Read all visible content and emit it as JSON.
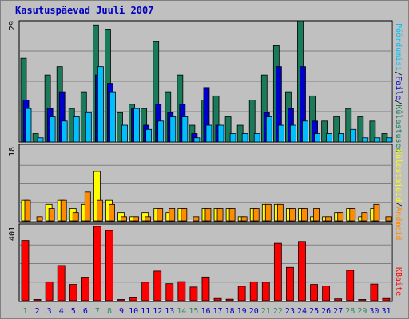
{
  "title": "Kasutuspäevad Juuli 2007",
  "colors": {
    "background": "#c0c0c0",
    "title": "#0000c0",
    "grid": "#808080",
    "weekday_label": "#0000c0",
    "weekend_label": "#2e8b57",
    "visits": "#1a7a5a",
    "pages": "#0000cc",
    "files": "#00bfff",
    "hits": "#ffff00",
    "volume": "#ff8c00",
    "bytes": "#ff0000"
  },
  "chart_data": [
    {
      "type": "bar",
      "name": "top",
      "ymax_label": "29",
      "ylim": [
        0,
        29
      ],
      "legend": [
        "Külastused",
        "Faile",
        "Pöördumisi"
      ],
      "categories": [
        "1",
        "2",
        "3",
        "4",
        "5",
        "6",
        "7",
        "8",
        "9",
        "10",
        "11",
        "12",
        "13",
        "14",
        "15",
        "16",
        "17",
        "18",
        "19",
        "20",
        "21",
        "22",
        "23",
        "24",
        "25",
        "26",
        "27",
        "28",
        "29",
        "30",
        "31"
      ],
      "series": [
        {
          "name": "Külastused",
          "values": [
            20,
            2,
            16,
            18,
            8,
            12,
            28,
            27,
            7,
            9,
            8,
            24,
            12,
            16,
            4,
            10,
            11,
            6,
            4,
            10,
            16,
            23,
            12,
            29,
            11,
            5,
            6,
            8,
            6,
            5,
            2
          ]
        },
        {
          "name": "Faile",
          "values": [
            10,
            0,
            8,
            12,
            0,
            0,
            16,
            14,
            0,
            8,
            4,
            9,
            7,
            9,
            2,
            13,
            4,
            0,
            0,
            0,
            7,
            18,
            8,
            18,
            5,
            0,
            0,
            0,
            0,
            0,
            0
          ]
        },
        {
          "name": "Pöördumisi",
          "values": [
            8,
            1,
            6,
            5,
            6,
            7,
            18,
            12,
            4,
            8,
            3,
            5,
            6,
            6,
            1,
            4,
            4,
            2,
            2,
            2,
            6,
            4,
            4,
            5,
            2,
            2,
            2,
            3,
            1,
            1,
            1
          ]
        }
      ]
    },
    {
      "type": "bar",
      "name": "middle",
      "ymax_label": "18",
      "ylim": [
        0,
        18
      ],
      "legend": [
        "Andmeid",
        "Külastajaid"
      ],
      "series": [
        {
          "name": "Andmeid",
          "values": [
            5,
            0,
            4,
            5,
            3,
            4,
            12,
            5,
            2,
            1,
            2,
            3,
            2,
            3,
            0,
            3,
            3,
            3,
            1,
            3,
            4,
            4,
            3,
            3,
            1,
            1,
            2,
            3,
            1,
            3,
            0
          ]
        },
        {
          "name": "Külastajaid",
          "values": [
            5,
            1,
            3,
            5,
            2,
            7,
            5,
            4,
            1,
            1,
            1,
            3,
            3,
            3,
            1,
            3,
            3,
            3,
            1,
            3,
            4,
            4,
            3,
            3,
            3,
            1,
            2,
            3,
            2,
            4,
            1
          ]
        }
      ]
    },
    {
      "type": "bar",
      "name": "bottom",
      "ymax_label": "401",
      "ylim": [
        0,
        401
      ],
      "legend": [
        "KBaite"
      ],
      "series": [
        {
          "name": "KBaite",
          "values": [
            325,
            6,
            102,
            190,
            88,
            127,
            401,
            379,
            6,
            16,
            100,
            160,
            92,
            103,
            74,
            128,
            12,
            8,
            78,
            102,
            100,
            310,
            180,
            320,
            88,
            79,
            10,
            164,
            6,
            90,
            12
          ]
        }
      ]
    }
  ]
}
